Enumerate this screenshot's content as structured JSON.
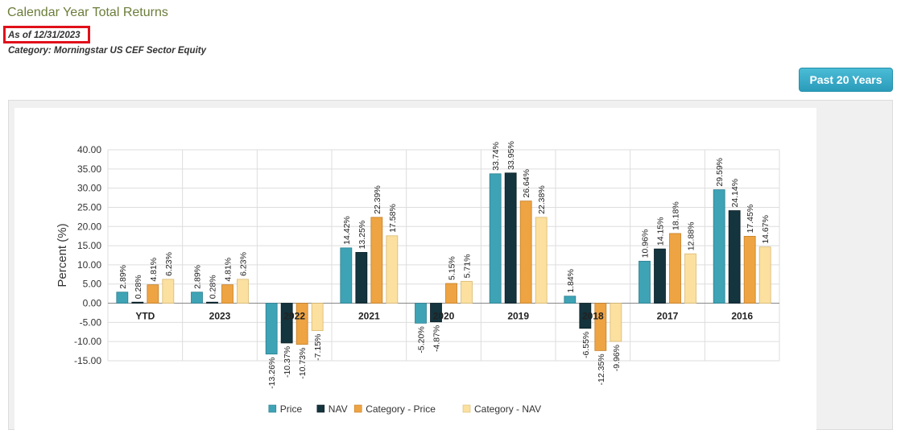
{
  "header": {
    "title": "Calendar Year Total Returns",
    "as_of": "As of 12/31/2023",
    "category": "Category: Morningstar US CEF Sector Equity",
    "button_label": "Past 20 Years"
  },
  "colors": {
    "price": "#3ea3b5",
    "nav": "#14343e",
    "category_price": "#eea443",
    "category_nav": "#fbe0a0"
  },
  "chart_data": {
    "type": "bar",
    "ylabel": "Percent (%)",
    "ylim": [
      -15,
      40
    ],
    "yticks": [
      "40.00",
      "35.00",
      "30.00",
      "25.00",
      "20.00",
      "15.00",
      "10.00",
      "5.00",
      "0.00",
      "-5.00",
      "-10.00",
      "-15.00"
    ],
    "categories": [
      "YTD",
      "2023",
      "2022",
      "2021",
      "2020",
      "2019",
      "2018",
      "2017",
      "2016"
    ],
    "series": [
      {
        "name": "Price",
        "values": [
          2.89,
          2.89,
          -13.26,
          14.42,
          -5.2,
          33.74,
          1.84,
          10.96,
          29.59
        ],
        "labels": [
          "2.89%",
          "2.89%",
          "-13.26%",
          "14.42%",
          "-5.20%",
          "33.74%",
          "1.84%",
          "10.96%",
          "29.59%"
        ]
      },
      {
        "name": "NAV",
        "values": [
          0.28,
          0.28,
          -10.37,
          13.25,
          -4.87,
          33.95,
          -6.55,
          14.15,
          24.14
        ],
        "labels": [
          "0.28%",
          "0.28%",
          "-10.37%",
          "13.25%",
          "-4.87%",
          "33.95%",
          "-6.55%",
          "14.15%",
          "24.14%"
        ]
      },
      {
        "name": "Category - Price",
        "values": [
          4.81,
          4.81,
          -10.73,
          22.39,
          5.15,
          26.64,
          -12.35,
          18.18,
          17.45
        ],
        "labels": [
          "4.81%",
          "4.81%",
          "-10.73%",
          "22.39%",
          "5.15%",
          "26.64%",
          "-12.35%",
          "18.18%",
          "17.45%"
        ]
      },
      {
        "name": "Category - NAV",
        "values": [
          6.23,
          6.23,
          -7.15,
          17.58,
          5.71,
          22.38,
          -9.96,
          12.88,
          14.67
        ],
        "labels": [
          "6.23%",
          "6.23%",
          "-7.15%",
          "17.58%",
          "5.71%",
          "22.38%",
          "-9.96%",
          "12.88%",
          "14.67%"
        ]
      }
    ],
    "grid": true,
    "legend_position": "bottom"
  }
}
